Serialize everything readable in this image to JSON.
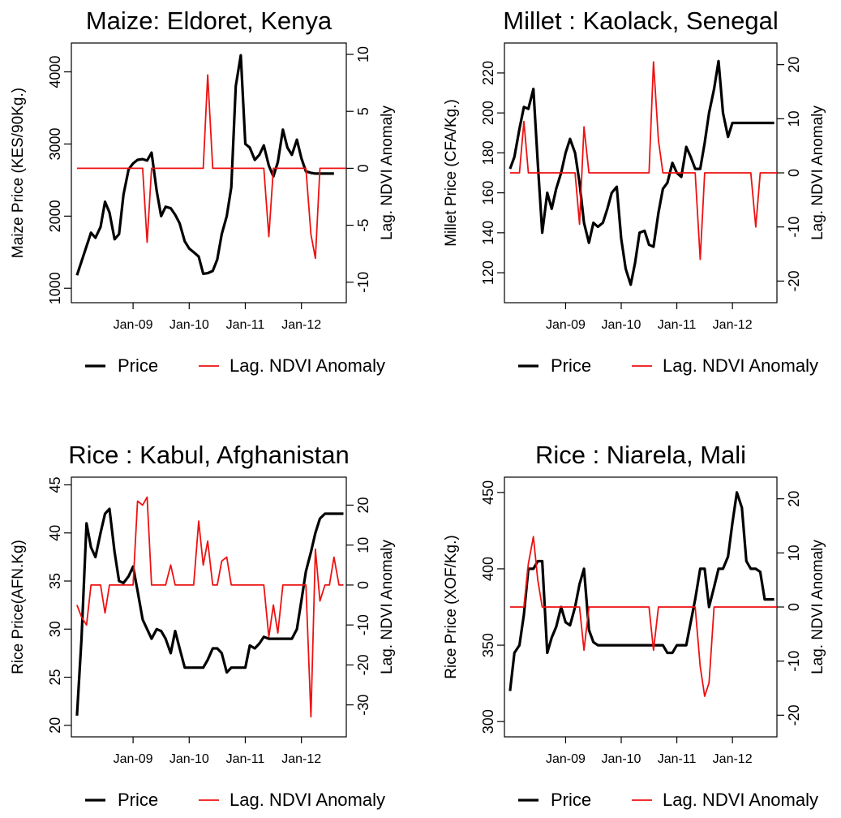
{
  "chart_data": [
    {
      "type": "line",
      "title": "Maize: Eldoret, Kenya",
      "ylabel": "Maize Price (KES/90Kg.)",
      "ylabel2": "Lag. NDVI Anomaly",
      "x_ticks": [
        "Jan-09",
        "Jan-10",
        "Jan-11",
        "Jan-12"
      ],
      "xlim": [
        2007.9,
        2012.8
      ],
      "ylim": [
        800,
        4400
      ],
      "y_ticks": [
        "1000",
        "2000",
        "3000",
        "4000"
      ],
      "y2lim": [
        -11.8,
        11.0
      ],
      "y2_ticks": [
        "-10",
        "-5",
        "0",
        "5",
        "10"
      ],
      "legend": [
        "Price",
        "Lag. NDVI Anomaly"
      ],
      "legend_position": "bottom",
      "series": [
        {
          "name": "Price",
          "axis": "left",
          "color": "#000000",
          "x": [
            2008.0,
            2008.25,
            2008.33,
            2008.42,
            2008.5,
            2008.58,
            2008.67,
            2008.75,
            2008.83,
            2008.92,
            2009.0,
            2009.08,
            2009.17,
            2009.25,
            2009.33,
            2009.42,
            2009.5,
            2009.58,
            2009.67,
            2009.75,
            2009.83,
            2009.92,
            2010.0,
            2010.08,
            2010.17,
            2010.25,
            2010.33,
            2010.42,
            2010.5,
            2010.58,
            2010.67,
            2010.75,
            2010.83,
            2010.92,
            2011.0,
            2011.08,
            2011.17,
            2011.25,
            2011.33,
            2011.42,
            2011.5,
            2011.58,
            2011.67,
            2011.75,
            2011.83,
            2011.92,
            2012.0,
            2012.08,
            2012.17,
            2012.25,
            2012.33,
            2012.42,
            2012.5,
            2012.58
          ],
          "values": [
            1180,
            1770,
            1700,
            1850,
            2200,
            2050,
            1680,
            1750,
            2300,
            2650,
            2730,
            2780,
            2790,
            2770,
            2880,
            2350,
            2000,
            2130,
            2110,
            2020,
            1900,
            1650,
            1550,
            1500,
            1440,
            1200,
            1210,
            1240,
            1400,
            1750,
            2000,
            2400,
            3800,
            4230,
            3000,
            2950,
            2780,
            2850,
            2980,
            2700,
            2550,
            2750,
            3200,
            2950,
            2850,
            3060,
            2800,
            2620,
            2600,
            2590,
            2590,
            2590,
            2590,
            2590
          ]
        },
        {
          "name": "Lag. NDVI Anomaly",
          "axis": "right",
          "color": "#ee1111",
          "x": [
            2008.0,
            2009.17,
            2009.25,
            2009.33,
            2010.25,
            2010.33,
            2010.42,
            2011.33,
            2011.42,
            2011.5,
            2012.08,
            2012.17,
            2012.25,
            2012.33,
            2012.8
          ],
          "values": [
            0,
            0,
            -6.5,
            0,
            0,
            8.2,
            0,
            0,
            -6.0,
            0,
            0,
            -5.8,
            -7.9,
            0,
            0
          ]
        }
      ]
    },
    {
      "type": "line",
      "title": "Millet : Kaolack, Senegal",
      "ylabel": "Millet Price (CFA/Kg.)",
      "ylabel2": "Lag. NDVI Anomaly",
      "x_ticks": [
        "Jan-09",
        "Jan-10",
        "Jan-11",
        "Jan-12"
      ],
      "xlim": [
        2007.9,
        2012.8
      ],
      "ylim": [
        105,
        235
      ],
      "y_ticks": [
        "120",
        "140",
        "160",
        "180",
        "200",
        "220"
      ],
      "y2lim": [
        -24,
        24
      ],
      "y2_ticks": [
        "-20",
        "-10",
        "0",
        "10",
        "20"
      ],
      "legend": [
        "Price",
        "Lag. NDVI Anomaly"
      ],
      "legend_position": "bottom",
      "series": [
        {
          "name": "Price",
          "axis": "left",
          "color": "#000000",
          "x": [
            2008.0,
            2008.08,
            2008.17,
            2008.25,
            2008.33,
            2008.42,
            2008.5,
            2008.58,
            2008.67,
            2008.75,
            2008.83,
            2008.92,
            2009.0,
            2009.08,
            2009.17,
            2009.25,
            2009.33,
            2009.42,
            2009.5,
            2009.58,
            2009.67,
            2009.75,
            2009.83,
            2009.92,
            2010.0,
            2010.08,
            2010.17,
            2010.25,
            2010.33,
            2010.42,
            2010.5,
            2010.58,
            2010.67,
            2010.75,
            2010.83,
            2010.92,
            2011.0,
            2011.08,
            2011.17,
            2011.25,
            2011.33,
            2011.42,
            2011.5,
            2011.58,
            2011.67,
            2011.75,
            2011.83,
            2011.92,
            2012.0,
            2012.08,
            2012.17,
            2012.25,
            2012.33,
            2012.42,
            2012.5,
            2012.58,
            2012.67,
            2012.75
          ],
          "values": [
            172,
            178,
            192,
            203,
            202,
            212,
            175,
            140,
            160,
            152,
            162,
            170,
            180,
            187,
            180,
            165,
            145,
            135,
            145,
            143,
            145,
            152,
            160,
            163,
            137,
            122,
            114,
            125,
            140,
            141,
            134,
            133,
            150,
            162,
            165,
            175,
            170,
            168,
            183,
            178,
            172,
            172,
            185,
            200,
            212,
            226,
            200,
            188,
            195,
            195,
            195,
            195,
            195,
            195,
            195,
            195,
            195,
            195
          ]
        },
        {
          "name": "Lag. NDVI Anomaly",
          "axis": "right",
          "color": "#ee1111",
          "x": [
            2008.0,
            2008.08,
            2008.17,
            2008.25,
            2008.33,
            2009.17,
            2009.25,
            2009.33,
            2009.42,
            2010.5,
            2010.58,
            2010.67,
            2010.75,
            2011.33,
            2011.42,
            2011.5,
            2012.33,
            2012.42,
            2012.5,
            2012.8
          ],
          "values": [
            0,
            0,
            0,
            9.5,
            0,
            0,
            -9.5,
            8.5,
            0,
            0,
            20.5,
            6,
            0,
            0,
            -16,
            0,
            0,
            -10,
            0,
            0
          ]
        }
      ]
    },
    {
      "type": "line",
      "title": "Rice : Kabul, Afghanistan",
      "ylabel": "Rice Price(AFN.Kg)",
      "ylabel2": "Lag. NDVI Anomaly",
      "x_ticks": [
        "Jan-09",
        "Jan-10",
        "Jan-11",
        "Jan-12"
      ],
      "xlim": [
        2007.9,
        2012.8
      ],
      "ylim": [
        18.8,
        45.8
      ],
      "y_ticks": [
        "20",
        "25",
        "30",
        "35",
        "40",
        "45"
      ],
      "y2lim": [
        -38,
        27
      ],
      "y2_ticks": [
        "-30",
        "-20",
        "-10",
        "0",
        "10",
        "20"
      ],
      "legend": [
        "Price",
        "Lag. NDVI Anomaly"
      ],
      "legend_position": "bottom",
      "series": [
        {
          "name": "Price",
          "axis": "left",
          "color": "#000000",
          "x": [
            2008.0,
            2008.08,
            2008.17,
            2008.25,
            2008.33,
            2008.42,
            2008.5,
            2008.58,
            2008.67,
            2008.75,
            2008.83,
            2008.92,
            2009.0,
            2009.08,
            2009.17,
            2009.25,
            2009.33,
            2009.42,
            2009.5,
            2009.58,
            2009.67,
            2009.75,
            2009.83,
            2009.92,
            2010.0,
            2010.08,
            2010.17,
            2010.25,
            2010.33,
            2010.42,
            2010.5,
            2010.58,
            2010.67,
            2010.75,
            2010.83,
            2010.92,
            2011.0,
            2011.08,
            2011.17,
            2011.25,
            2011.33,
            2011.42,
            2011.5,
            2011.58,
            2011.67,
            2011.75,
            2011.83,
            2011.92,
            2012.0,
            2012.08,
            2012.17,
            2012.25,
            2012.33,
            2012.42,
            2012.5,
            2012.58,
            2012.67,
            2012.75
          ],
          "values": [
            21,
            29,
            41,
            38.5,
            37.5,
            40,
            42,
            42.5,
            38,
            35,
            34.8,
            35.5,
            36.5,
            34,
            31,
            30,
            29,
            30,
            29.8,
            29,
            27.5,
            29.8,
            28,
            26,
            26,
            26,
            26,
            26,
            26.8,
            28,
            28,
            27.5,
            25.5,
            26,
            26,
            26,
            26,
            28.3,
            28,
            28.5,
            29.2,
            29,
            29,
            29,
            29,
            29,
            29,
            30,
            33,
            36,
            38,
            40,
            41.5,
            42,
            42,
            42,
            42,
            42
          ]
        },
        {
          "name": "Lag. NDVI Anomaly",
          "axis": "right",
          "color": "#ee1111",
          "x": [
            2008.0,
            2008.08,
            2008.17,
            2008.25,
            2008.33,
            2008.42,
            2008.5,
            2008.58,
            2008.67,
            2008.75,
            2008.83,
            2008.92,
            2009.0,
            2009.08,
            2009.17,
            2009.25,
            2009.33,
            2009.42,
            2009.5,
            2009.58,
            2009.67,
            2009.75,
            2009.83,
            2009.92,
            2010.0,
            2010.08,
            2010.17,
            2010.25,
            2010.33,
            2010.42,
            2010.5,
            2010.58,
            2010.67,
            2010.75,
            2010.83,
            2010.92,
            2011.0,
            2011.08,
            2011.17,
            2011.25,
            2011.33,
            2011.42,
            2011.5,
            2011.58,
            2011.67,
            2011.75,
            2011.83,
            2011.92,
            2012.0,
            2012.08,
            2012.17,
            2012.25,
            2012.33,
            2012.42,
            2012.5,
            2012.58,
            2012.67,
            2012.75
          ],
          "values": [
            -5,
            -8,
            -10,
            0,
            0,
            0,
            -7,
            0,
            0,
            0,
            0,
            0,
            0,
            21,
            20,
            22,
            0,
            0,
            0,
            0,
            5,
            0,
            0,
            0,
            0,
            0,
            16,
            5,
            11,
            0,
            0,
            6,
            7,
            0,
            0,
            0,
            0,
            0,
            0,
            0,
            0,
            -13,
            -5,
            -12,
            0,
            0,
            0,
            0,
            0,
            0,
            -33,
            9,
            -4,
            0,
            0,
            7,
            0,
            0
          ]
        }
      ]
    },
    {
      "type": "line",
      "title": "Rice : Niarela, Mali",
      "ylabel": "Rice Price (XOF/Kg.)",
      "ylabel2": "Lag. NDVI Anomaly",
      "x_ticks": [
        "Jan-09",
        "Jan-10",
        "Jan-11",
        "Jan-12"
      ],
      "xlim": [
        2007.9,
        2012.8
      ],
      "ylim": [
        290,
        460
      ],
      "y_ticks": [
        "300",
        "350",
        "400",
        "450"
      ],
      "y2lim": [
        -24,
        24
      ],
      "y2_ticks": [
        "-20",
        "-10",
        "0",
        "10",
        "20"
      ],
      "legend": [
        "Price",
        "Lag. NDVI Anomaly"
      ],
      "legend_position": "bottom",
      "series": [
        {
          "name": "Price",
          "axis": "left",
          "color": "#000000",
          "x": [
            2008.0,
            2008.08,
            2008.17,
            2008.25,
            2008.33,
            2008.42,
            2008.5,
            2008.58,
            2008.67,
            2008.75,
            2008.83,
            2008.92,
            2009.0,
            2009.08,
            2009.17,
            2009.25,
            2009.33,
            2009.42,
            2009.5,
            2009.58,
            2009.67,
            2009.75,
            2009.83,
            2009.92,
            2010.0,
            2010.08,
            2010.17,
            2010.25,
            2010.33,
            2010.42,
            2010.5,
            2010.58,
            2010.67,
            2010.75,
            2010.83,
            2010.92,
            2011.0,
            2011.08,
            2011.17,
            2011.25,
            2011.33,
            2011.42,
            2011.5,
            2011.58,
            2011.67,
            2011.75,
            2011.83,
            2011.92,
            2012.0,
            2012.08,
            2012.17,
            2012.25,
            2012.33,
            2012.42,
            2012.5,
            2012.58,
            2012.67,
            2012.75
          ],
          "values": [
            320,
            345,
            350,
            370,
            400,
            400,
            405,
            405,
            345,
            355,
            362,
            375,
            365,
            363,
            375,
            390,
            400,
            360,
            352,
            350,
            350,
            350,
            350,
            350,
            350,
            350,
            350,
            350,
            350,
            350,
            350,
            350,
            350,
            350,
            345,
            345,
            350,
            350,
            350,
            365,
            380,
            400,
            400,
            375,
            388,
            400,
            400,
            408,
            430,
            450,
            440,
            405,
            400,
            400,
            398,
            380,
            380,
            380
          ]
        },
        {
          "name": "Lag. NDVI Anomaly",
          "axis": "right",
          "color": "#ee1111",
          "x": [
            2008.0,
            2008.25,
            2008.33,
            2008.42,
            2008.5,
            2008.58,
            2009.25,
            2009.33,
            2009.42,
            2010.5,
            2010.58,
            2010.67,
            2011.33,
            2011.42,
            2011.5,
            2011.58,
            2011.67,
            2012.8
          ],
          "values": [
            0,
            0,
            8,
            13,
            5,
            0,
            0,
            -8,
            0,
            0,
            -8,
            0,
            0,
            -11,
            -16.5,
            -14,
            0,
            0
          ]
        }
      ]
    }
  ]
}
